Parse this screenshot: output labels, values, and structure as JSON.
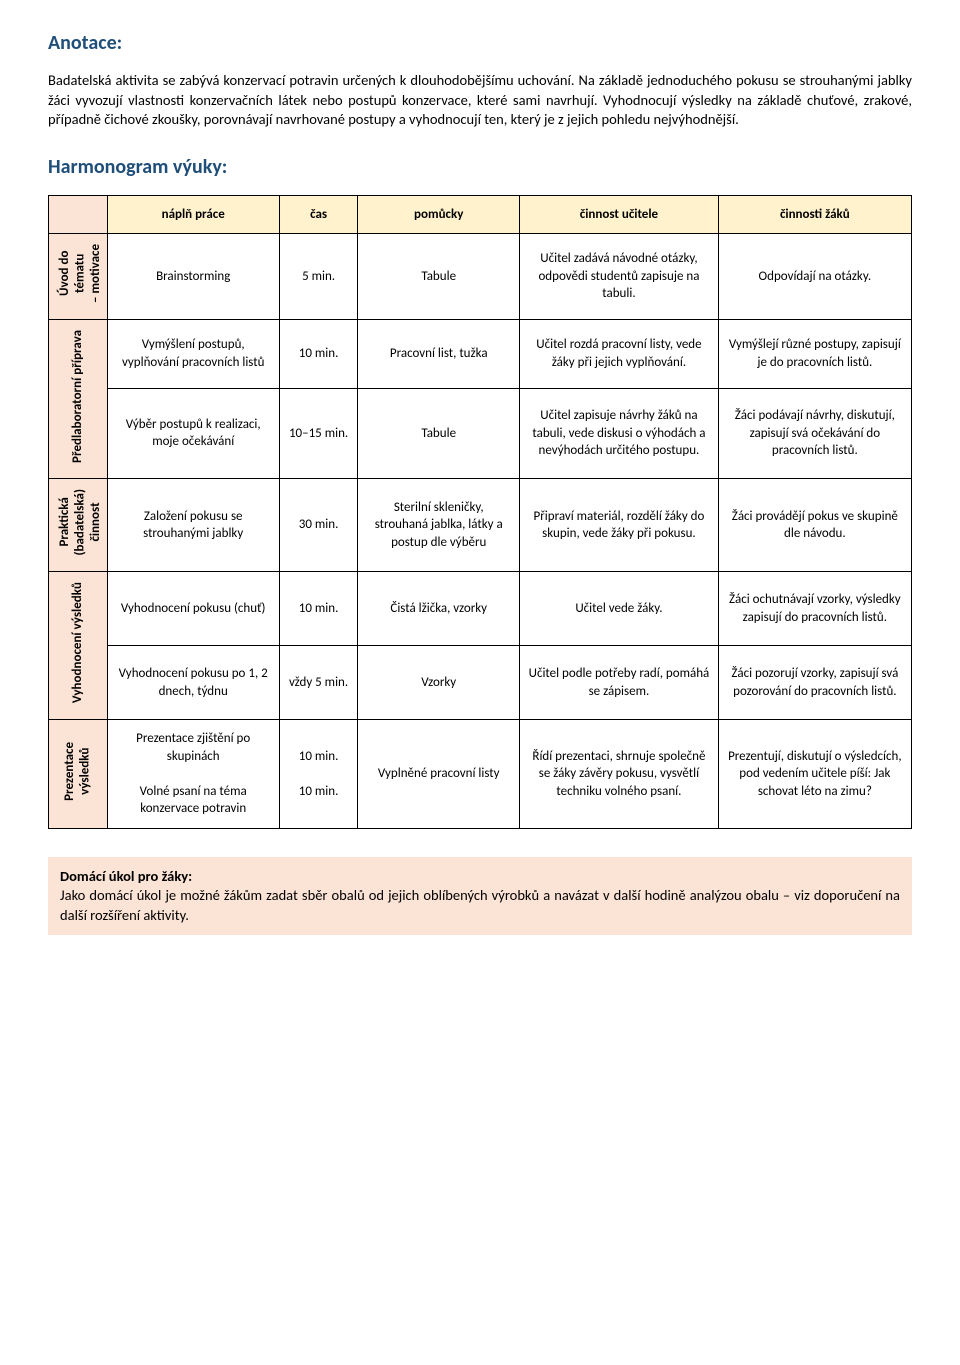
{
  "colors": {
    "heading": "#1f4e79",
    "peach": "#fbe4d5",
    "yellow": "#fff2cc",
    "border": "#000000",
    "text": "#000000",
    "bg": "#ffffff"
  },
  "annotation": {
    "title": "Anotace:",
    "body": "Badatelská aktivita se zabývá konzervací potravin určených k dlouhodobějšímu uchování. Na základě jednoduchého pokusu se strouhanými jablky žáci vyvozují vlastnosti konzervačních látek nebo postupů konzervace, které sami navrhují. Vyhodnocují výsledky na základě chuťové, zrakové, případně čichové zkoušky, porovnávají navrhované postupy a vyhodnocují ten, který je z jejich pohledu nejvýhodnější."
  },
  "harmonogram": {
    "title": "Harmonogram výuky:"
  },
  "table": {
    "header": {
      "col1": "",
      "col2": "náplň práce",
      "col3": "čas",
      "col4": "pomůcky",
      "col5": "činnost učitele",
      "col6": "činnosti žáků"
    },
    "phases": [
      {
        "label": "Úvod do\ntématu\n– motivace",
        "rows": [
          {
            "napln": "Brainstorming",
            "cas": "5 min.",
            "pomucky": "Tabule",
            "ucitel": "Učitel zadává návodné otázky, odpovědi studentů zapisuje na tabuli.",
            "zaci": "Odpovídají na otázky."
          }
        ]
      },
      {
        "label": "Předlaboratorní příprava",
        "rows": [
          {
            "napln": "Vymýšlení postupů, vyplňování pracovních listů",
            "cas": "10 min.",
            "pomucky": "Pracovní list, tužka",
            "ucitel": "Učitel rozdá pracovní listy, vede žáky při jejich vyplňování.",
            "zaci": "Vymýšlejí různé postupy, zapisují je do pracovních listů."
          },
          {
            "napln": "Výběr postupů k realizaci, moje očekávání",
            "cas": "10–15 min.",
            "pomucky": "Tabule",
            "ucitel": "Učitel zapisuje návrhy žáků na tabuli, vede diskusi o výhodách a nevýhodách určitého postupu.",
            "zaci": "Žáci podávají návrhy, diskutují, zapisují svá očekávání do pracovních listů."
          }
        ]
      },
      {
        "label": "Praktická\n(badatelská)\nčinnost",
        "rows": [
          {
            "napln": "Založení pokusu se strouhanými jablky",
            "cas": "30 min.",
            "pomucky": "Sterilní skleničky, strouhaná jablka, látky a postup dle výběru",
            "ucitel": "Připraví materiál, rozdělí žáky do skupin, vede žáky při pokusu.",
            "zaci": "Žáci provádějí pokus ve skupině dle návodu."
          }
        ]
      },
      {
        "label": "Vyhodnocení výsledků",
        "rows": [
          {
            "napln": "Vyhodnocení pokusu (chuť)",
            "cas": "10 min.",
            "pomucky": "Čistá lžička, vzorky",
            "ucitel": "Učitel vede žáky.",
            "zaci": "Žáci ochutnávají vzorky, výsledky zapisují do pracovních listů."
          },
          {
            "napln": "Vyhodnocení pokusu po 1, 2 dnech, týdnu",
            "cas": "vždy 5 min.",
            "pomucky": "Vzorky",
            "ucitel": "Učitel podle potřeby radí, pomáhá se zápisem.",
            "zaci": "Žáci pozorují vzorky, zapisují svá pozorování do pracovních listů."
          }
        ]
      },
      {
        "label": "Prezentace\nvýsledků",
        "rows": [
          {
            "napln": "Prezentace zjištění po skupinách\n\nVolné psaní na téma konzervace potravin",
            "cas": "10 min.\n\n10 min.",
            "pomucky": "Vyplněné pracovní listy",
            "ucitel": "Řídí prezentaci, shrnuje společně se žáky závěry pokusu, vysvětlí techniku volného psaní.",
            "zaci": "Prezentují, diskutují o výsledcích, pod vedením učitele píší: Jak schovat léto na zimu?"
          }
        ]
      }
    ]
  },
  "homework": {
    "title": "Domácí úkol pro žáky:",
    "body": "Jako domácí úkol je možné žákům zadat sběr obalů od jejich oblíbených výrobků a navázat v další hodině analýzou obalu – viz doporučení na další rozšíření aktivity."
  }
}
